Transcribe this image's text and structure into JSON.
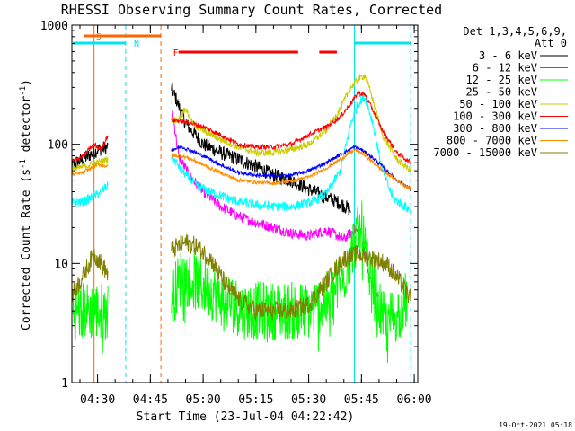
{
  "chart_data": {
    "type": "line",
    "title": "RHESSI Observing Summary Count Rates, Corrected",
    "xlabel": "Start Time (23-Jul-04 04:22:42)",
    "ylabel": "Corrected Count Rate (s⁻¹ detector⁻¹)",
    "ylabel_main": "Corrected Count Rate (s",
    "ylabel_sup1": "-1",
    "ylabel_mid": " detector",
    "ylabel_sup2": "-1",
    "ylabel_end": ")",
    "y_scale": "log",
    "ylim": [
      1,
      1000
    ],
    "xlim": [
      "04:22:42",
      "06:01:00"
    ],
    "x_ticks": [
      "04:30",
      "04:45",
      "05:00",
      "05:15",
      "05:30",
      "05:45",
      "06:00"
    ],
    "y_ticks": [
      "1",
      "10",
      "100",
      "1000"
    ],
    "legend": {
      "header1": "Det 1,3,4,5,6,9,",
      "header2": "Att 0",
      "placement": "right"
    },
    "timestamp": "19-Oct-2021 05:18",
    "flags": [
      {
        "label": "S",
        "color": "#ff6600",
        "start": "04:26",
        "end": "04:48"
      },
      {
        "label": "N",
        "color": "#00e5ee",
        "start": "04:22",
        "end": "04:38"
      },
      {
        "label": "F",
        "color": "#ff0000",
        "start": "04:53",
        "end": "05:27"
      },
      {
        "label": "",
        "color": "#ff0000",
        "start": "05:33",
        "end": "05:38"
      },
      {
        "label": "",
        "color": "#00e5ee",
        "start": "05:43",
        "end": "05:59"
      }
    ],
    "vertical_markers": [
      {
        "time": "04:22",
        "color": "#00e5ee",
        "style": "solid"
      },
      {
        "time": "04:29",
        "color": "#ff6600",
        "style": "solid"
      },
      {
        "time": "04:38",
        "color": "#00e5ee",
        "style": "dashed"
      },
      {
        "time": "04:48",
        "color": "#ff6600",
        "style": "dashed"
      },
      {
        "time": "05:43",
        "color": "#00e5ee",
        "style": "solid"
      },
      {
        "time": "05:59",
        "color": "#00e5ee",
        "style": "dashed"
      }
    ],
    "segments": [
      [
        "04:22",
        "04:33"
      ],
      [
        "04:51",
        "05:59"
      ]
    ],
    "series": [
      {
        "name": "3 - 6 keV",
        "color": "#000000",
        "knots": [
          [
            "04:22",
            65
          ],
          [
            "04:26",
            75
          ],
          [
            "04:30",
            90
          ],
          [
            "04:33",
            95
          ],
          [
            "04:51",
            300
          ],
          [
            "04:55",
            150
          ],
          [
            "05:00",
            100
          ],
          [
            "05:05",
            85
          ],
          [
            "05:10",
            75
          ],
          [
            "05:15",
            65
          ],
          [
            "05:20",
            55
          ],
          [
            "05:25",
            50
          ],
          [
            "05:30",
            42
          ],
          [
            "05:35",
            36
          ],
          [
            "05:39",
            32
          ],
          [
            "05:42",
            28
          ]
        ]
      },
      {
        "name": "6 - 12 keV",
        "color": "#ff00ff",
        "knots": [
          [
            "04:51",
            220
          ],
          [
            "04:53",
            80
          ],
          [
            "04:56",
            55
          ],
          [
            "05:00",
            40
          ],
          [
            "05:05",
            30
          ],
          [
            "05:10",
            25
          ],
          [
            "05:15",
            22
          ],
          [
            "05:20",
            20
          ],
          [
            "05:25",
            18
          ],
          [
            "05:30",
            17
          ],
          [
            "05:35",
            19
          ],
          [
            "05:40",
            16
          ],
          [
            "05:43",
            19
          ],
          [
            "05:45",
            18
          ],
          [
            "05:47",
            8
          ],
          [
            "05:50",
            5
          ]
        ]
      },
      {
        "name": "12 - 25 keV",
        "color": "#00ff00",
        "knots": [
          [
            "04:23",
            4
          ],
          [
            "04:27",
            4
          ],
          [
            "04:31",
            4
          ],
          [
            "04:33",
            4
          ],
          [
            "04:51",
            5
          ],
          [
            "04:54",
            8
          ],
          [
            "04:58",
            7
          ],
          [
            "05:02",
            6
          ],
          [
            "05:06",
            5
          ],
          [
            "05:12",
            4
          ],
          [
            "05:18",
            4
          ],
          [
            "05:24",
            4
          ],
          [
            "05:30",
            4
          ],
          [
            "05:36",
            5
          ],
          [
            "05:40",
            8
          ],
          [
            "05:43",
            15
          ],
          [
            "05:45",
            20
          ],
          [
            "05:47",
            8
          ],
          [
            "05:52",
            3
          ],
          [
            "05:58",
            5
          ]
        ]
      },
      {
        "name": "25 - 50 keV",
        "color": "#00ffff",
        "knots": [
          [
            "04:22",
            32
          ],
          [
            "04:26",
            33
          ],
          [
            "04:30",
            38
          ],
          [
            "04:33",
            45
          ],
          [
            "04:51",
            80
          ],
          [
            "04:54",
            60
          ],
          [
            "04:58",
            45
          ],
          [
            "05:02",
            40
          ],
          [
            "05:06",
            36
          ],
          [
            "05:10",
            33
          ],
          [
            "05:15",
            31
          ],
          [
            "05:20",
            30
          ],
          [
            "05:25",
            30
          ],
          [
            "05:30",
            32
          ],
          [
            "05:35",
            38
          ],
          [
            "05:39",
            60
          ],
          [
            "05:42",
            150
          ],
          [
            "05:44",
            220
          ],
          [
            "05:46",
            250
          ],
          [
            "05:48",
            160
          ],
          [
            "05:51",
            60
          ],
          [
            "05:54",
            35
          ],
          [
            "05:59",
            28
          ]
        ]
      },
      {
        "name": "50 - 100 keV",
        "color": "#cccc00",
        "knots": [
          [
            "04:22",
            60
          ],
          [
            "04:26",
            65
          ],
          [
            "04:30",
            70
          ],
          [
            "04:33",
            75
          ],
          [
            "04:51",
            160
          ],
          [
            "04:53",
            160
          ],
          [
            "04:55",
            200
          ],
          [
            "04:57",
            150
          ],
          [
            "05:00",
            130
          ],
          [
            "05:05",
            110
          ],
          [
            "05:10",
            95
          ],
          [
            "05:15",
            85
          ],
          [
            "05:20",
            85
          ],
          [
            "05:25",
            90
          ],
          [
            "05:30",
            100
          ],
          [
            "05:35",
            130
          ],
          [
            "05:39",
            200
          ],
          [
            "05:42",
            300
          ],
          [
            "05:44",
            350
          ],
          [
            "05:46",
            380
          ],
          [
            "05:48",
            250
          ],
          [
            "05:51",
            120
          ],
          [
            "05:55",
            75
          ],
          [
            "05:59",
            60
          ]
        ]
      },
      {
        "name": "100 - 300 keV",
        "color": "#ff0000",
        "knots": [
          [
            "04:22",
            70
          ],
          [
            "04:26",
            80
          ],
          [
            "04:29",
            100
          ],
          [
            "04:31",
            90
          ],
          [
            "04:33",
            120
          ],
          [
            "04:51",
            160
          ],
          [
            "04:55",
            155
          ],
          [
            "05:00",
            140
          ],
          [
            "05:05",
            120
          ],
          [
            "05:10",
            100
          ],
          [
            "05:15",
            95
          ],
          [
            "05:20",
            95
          ],
          [
            "05:25",
            100
          ],
          [
            "05:30",
            120
          ],
          [
            "05:35",
            140
          ],
          [
            "05:39",
            170
          ],
          [
            "05:42",
            220
          ],
          [
            "05:44",
            270
          ],
          [
            "05:46",
            260
          ],
          [
            "05:48",
            200
          ],
          [
            "05:51",
            130
          ],
          [
            "05:55",
            85
          ],
          [
            "05:59",
            70
          ]
        ]
      },
      {
        "name": "300 - 800 keV",
        "color": "#0000ff",
        "knots": [
          [
            "04:51",
            90
          ],
          [
            "04:54",
            95
          ],
          [
            "04:58",
            85
          ],
          [
            "05:02",
            75
          ],
          [
            "05:06",
            65
          ],
          [
            "05:10",
            58
          ],
          [
            "05:15",
            55
          ],
          [
            "05:20",
            54
          ],
          [
            "05:25",
            55
          ],
          [
            "05:30",
            60
          ],
          [
            "05:35",
            70
          ],
          [
            "05:40",
            85
          ],
          [
            "05:43",
            95
          ],
          [
            "05:45",
            90
          ],
          [
            "05:48",
            78
          ],
          [
            "05:51",
            65
          ],
          [
            "05:55",
            50
          ],
          [
            "05:59",
            42
          ]
        ]
      },
      {
        "name": "800 - 7000 keV",
        "color": "#ff8c00",
        "knots": [
          [
            "04:22",
            55
          ],
          [
            "04:26",
            58
          ],
          [
            "04:30",
            68
          ],
          [
            "04:33",
            65
          ],
          [
            "04:51",
            80
          ],
          [
            "04:54",
            80
          ],
          [
            "04:58",
            72
          ],
          [
            "05:02",
            63
          ],
          [
            "05:06",
            56
          ],
          [
            "05:10",
            50
          ],
          [
            "05:15",
            48
          ],
          [
            "05:20",
            47
          ],
          [
            "05:25",
            49
          ],
          [
            "05:30",
            53
          ],
          [
            "05:35",
            63
          ],
          [
            "05:40",
            78
          ],
          [
            "05:43",
            90
          ],
          [
            "05:45",
            85
          ],
          [
            "05:48",
            72
          ],
          [
            "05:51",
            60
          ],
          [
            "05:55",
            50
          ],
          [
            "05:59",
            42
          ]
        ]
      },
      {
        "name": "7000 - 15000 keV",
        "color": "#808000",
        "knots": [
          [
            "04:22",
            5
          ],
          [
            "04:25",
            7
          ],
          [
            "04:29",
            12
          ],
          [
            "04:31",
            10
          ],
          [
            "04:33",
            8
          ],
          [
            "04:51",
            13
          ],
          [
            "04:55",
            15
          ],
          [
            "04:58",
            14
          ],
          [
            "05:02",
            11
          ],
          [
            "05:06",
            7
          ],
          [
            "05:10",
            5
          ],
          [
            "05:15",
            4
          ],
          [
            "05:20",
            4
          ],
          [
            "05:25",
            4
          ],
          [
            "05:30",
            4.5
          ],
          [
            "05:35",
            7
          ],
          [
            "05:40",
            11
          ],
          [
            "05:44",
            12
          ],
          [
            "05:48",
            11
          ],
          [
            "05:52",
            10
          ],
          [
            "05:56",
            7
          ],
          [
            "05:59",
            5
          ]
        ]
      }
    ]
  }
}
